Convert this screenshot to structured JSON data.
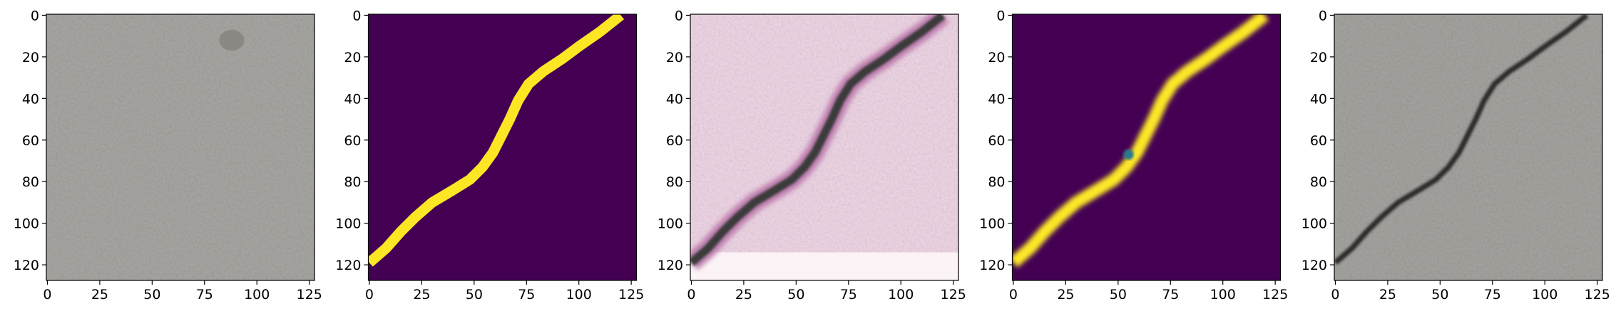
{
  "chart_data": [
    {
      "type": "image",
      "xlim": [
        -0.5,
        127.5
      ],
      "ylim": [
        127.5,
        -0.5
      ],
      "xticks": [
        0,
        25,
        50,
        75,
        100,
        125
      ],
      "yticks": [
        0,
        20,
        40,
        60,
        80,
        100,
        120
      ]
    },
    {
      "type": "image",
      "xlim": [
        -0.5,
        127.5
      ],
      "ylim": [
        127.5,
        -0.5
      ],
      "xticks": [
        0,
        25,
        50,
        75,
        100,
        125
      ],
      "yticks": [
        0,
        20,
        40,
        60,
        80,
        100,
        120
      ]
    },
    {
      "type": "image",
      "xlim": [
        -0.5,
        127.5
      ],
      "ylim": [
        127.5,
        -0.5
      ],
      "xticks": [
        0,
        25,
        50,
        75,
        100,
        125
      ],
      "yticks": [
        0,
        20,
        40,
        60,
        80,
        100,
        120
      ]
    },
    {
      "type": "image",
      "xlim": [
        -0.5,
        127.5
      ],
      "ylim": [
        127.5,
        -0.5
      ],
      "xticks": [
        0,
        25,
        50,
        75,
        100,
        125
      ],
      "yticks": [
        0,
        20,
        40,
        60,
        80,
        100,
        120
      ]
    },
    {
      "type": "image",
      "xlim": [
        -0.5,
        127.5
      ],
      "ylim": [
        127.5,
        -0.5
      ],
      "xticks": [
        0,
        25,
        50,
        75,
        100,
        125
      ],
      "yticks": [
        0,
        20,
        40,
        60,
        80,
        100,
        120
      ]
    }
  ]
}
